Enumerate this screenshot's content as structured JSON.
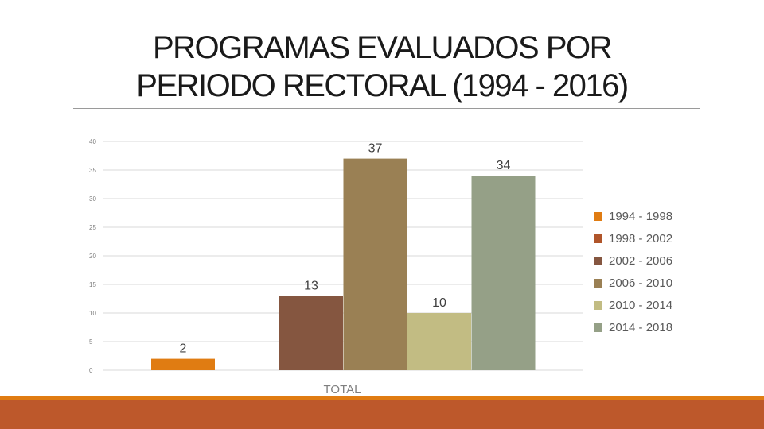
{
  "slide": {
    "title_line1": "PROGRAMAS EVALUADOS POR",
    "title_line2": "PERIODO RECTORAL (1994 - 2016)"
  },
  "colors": {
    "band_thin": "#e07c12",
    "band_thick": "#bd582b",
    "grid": "#d9d9d9",
    "tick_text": "#7f7f7f",
    "label_text": "#404040"
  },
  "chart_data": {
    "type": "bar",
    "title": "",
    "xlabel": "",
    "ylabel": "",
    "categories": [
      "TOTAL"
    ],
    "series": [
      {
        "name": "1994 - 1998",
        "values": [
          2
        ],
        "color": "#e07c12"
      },
      {
        "name": "1998 - 2002",
        "values": [
          null
        ],
        "color": "#b0552a"
      },
      {
        "name": "2002 - 2006",
        "values": [
          13
        ],
        "color": "#855640"
      },
      {
        "name": "2006 - 2010",
        "values": [
          37
        ],
        "color": "#9a8054"
      },
      {
        "name": "2010 - 2014",
        "values": [
          10
        ],
        "color": "#c2bc83"
      },
      {
        "name": "2014 - 2018",
        "values": [
          34
        ],
        "color": "#95a087"
      }
    ],
    "ylim": [
      0,
      40
    ],
    "yticks": [
      0,
      5,
      10,
      15,
      20,
      25,
      30,
      35,
      40
    ],
    "grid": true,
    "legend": "right"
  }
}
